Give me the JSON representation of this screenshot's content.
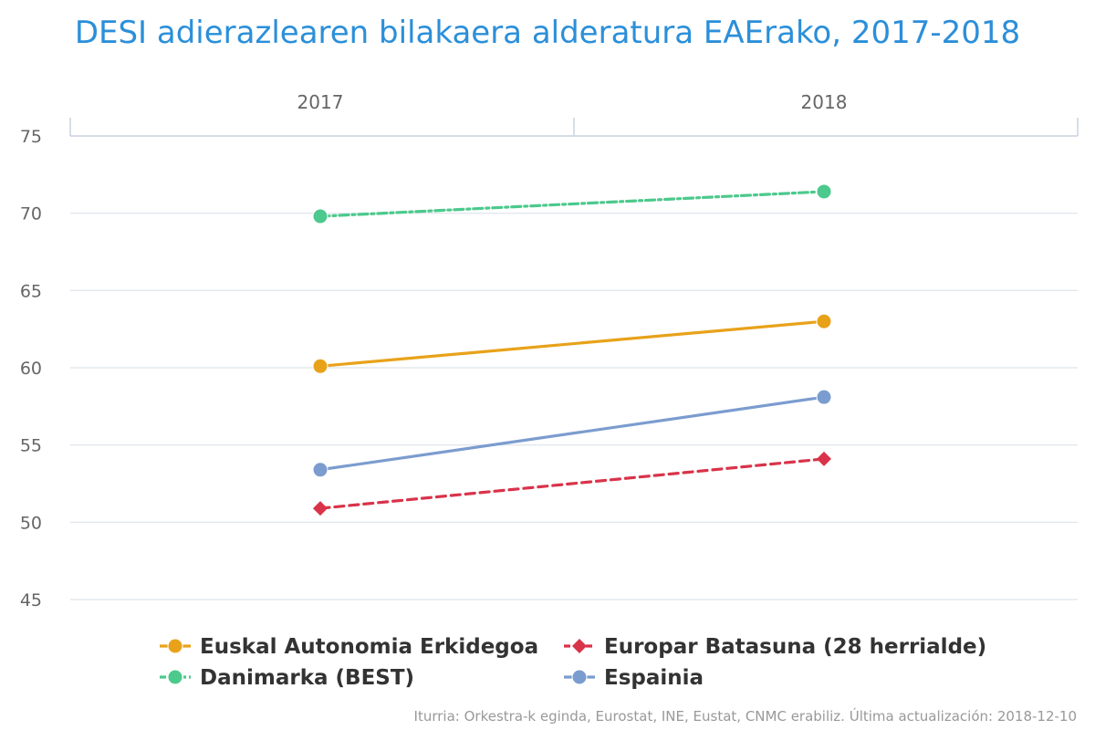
{
  "chart_data": {
    "type": "line",
    "title": "DESI adierazlearen bilakaera alderatura EAErako, 2017-2018",
    "categories": [
      "2017",
      "2018"
    ],
    "ylim": [
      45,
      75
    ],
    "yticks": [
      45,
      50,
      55,
      60,
      65,
      70,
      75
    ],
    "grid": true,
    "legend_position": "bottom",
    "series": [
      {
        "name": "Euskal Autonomia Erkidegoa",
        "values": [
          60.1,
          63.0
        ],
        "color": "#e8a21a",
        "dash": "solid",
        "marker": "circle"
      },
      {
        "name": "Europar Batasuna (28 herrialde)",
        "values": [
          50.9,
          54.1
        ],
        "color": "#d9334a",
        "dash": "dashed",
        "marker": "diamond"
      },
      {
        "name": "Danimarka (BEST)",
        "values": [
          69.8,
          71.4
        ],
        "color": "#4cc98c",
        "dash": "dashdot",
        "marker": "circle"
      },
      {
        "name": "Espainia",
        "values": [
          53.4,
          58.1
        ],
        "color": "#7b9ccf",
        "dash": "solid",
        "marker": "circle"
      }
    ],
    "source": "Iturria: Orkestra-k eginda, Eurostat, INE, Eustat, CNMC erabiliz. Última actualización: 2018-12-10"
  },
  "colors": {
    "title": "#2b8fd9",
    "grid": "#dde3ec",
    "axis": "#c8d2e2"
  }
}
